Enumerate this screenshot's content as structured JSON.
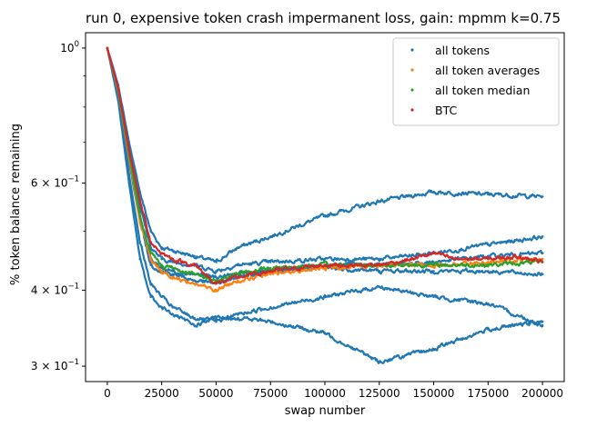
{
  "chart_data": {
    "type": "scatter",
    "title": "run 0, expensive token crash impermanent loss, gain: mpmm k=0.75",
    "xlabel": "swap number",
    "ylabel": "% token balance remaining",
    "xlim": [
      -10000,
      210000
    ],
    "ylim": [
      0.283,
      1.06
    ],
    "yscale": "log",
    "x_ticks": [
      0,
      25000,
      50000,
      75000,
      100000,
      125000,
      150000,
      175000,
      200000
    ],
    "x_tick_labels": [
      "0",
      "25000",
      "50000",
      "75000",
      "100000",
      "125000",
      "150000",
      "175000",
      "200000"
    ],
    "y_major_ticks": [
      {
        "value": 1.0,
        "base": "10",
        "exp": "0"
      },
      {
        "value": 0.3,
        "base": "3 × 10",
        "exp": "−1"
      },
      {
        "value": 0.4,
        "base": "4 × 10",
        "exp": "−1"
      },
      {
        "value": 0.6,
        "base": "6 × 10",
        "exp": "−1"
      }
    ],
    "y_minor_ticks": [
      0.5,
      0.7,
      0.8,
      0.9
    ],
    "legend": {
      "position": "top-right",
      "entries": [
        {
          "label": "all tokens",
          "color": "#1f77b4"
        },
        {
          "label": "all token averages",
          "color": "#ff7f0e"
        },
        {
          "label": "all token median",
          "color": "#2ca02c"
        },
        {
          "label": "BTC",
          "color": "#d62728"
        }
      ]
    },
    "series": [
      {
        "name": "all tokens",
        "color": "#1f77b4",
        "group": "token-1",
        "x": [
          0,
          5000,
          10000,
          15000,
          20000,
          25000,
          30000,
          40000,
          50000,
          60000,
          75000,
          100000,
          125000,
          150000,
          175000,
          200000
        ],
        "y": [
          1.0,
          0.87,
          0.7,
          0.58,
          0.5,
          0.47,
          0.465,
          0.455,
          0.445,
          0.47,
          0.49,
          0.53,
          0.56,
          0.58,
          0.575,
          0.57
        ]
      },
      {
        "name": "all tokens",
        "color": "#1f77b4",
        "group": "token-2",
        "x": [
          0,
          5000,
          10000,
          15000,
          20000,
          25000,
          30000,
          40000,
          50000,
          60000,
          75000,
          100000,
          125000,
          150000,
          175000,
          200000
        ],
        "y": [
          1.0,
          0.86,
          0.68,
          0.55,
          0.47,
          0.45,
          0.445,
          0.44,
          0.43,
          0.44,
          0.445,
          0.45,
          0.45,
          0.46,
          0.475,
          0.49
        ]
      },
      {
        "name": "all tokens",
        "color": "#1f77b4",
        "group": "token-3",
        "x": [
          0,
          5000,
          10000,
          15000,
          20000,
          25000,
          30000,
          40000,
          50000,
          60000,
          75000,
          100000,
          125000,
          150000,
          175000,
          200000
        ],
        "y": [
          1.0,
          0.85,
          0.66,
          0.53,
          0.45,
          0.435,
          0.43,
          0.425,
          0.42,
          0.425,
          0.43,
          0.44,
          0.44,
          0.445,
          0.455,
          0.46
        ]
      },
      {
        "name": "all tokens",
        "color": "#1f77b4",
        "group": "token-4",
        "x": [
          0,
          5000,
          10000,
          15000,
          20000,
          25000,
          30000,
          40000,
          50000,
          60000,
          75000,
          100000,
          125000,
          150000,
          175000,
          200000
        ],
        "y": [
          1.0,
          0.85,
          0.65,
          0.52,
          0.44,
          0.43,
          0.425,
          0.415,
          0.41,
          0.42,
          0.43,
          0.435,
          0.43,
          0.43,
          0.43,
          0.425
        ]
      },
      {
        "name": "all tokens",
        "color": "#1f77b4",
        "group": "token-5",
        "x": [
          0,
          5000,
          10000,
          15000,
          20000,
          25000,
          30000,
          40000,
          50000,
          60000,
          75000,
          100000,
          125000,
          150000,
          175000,
          200000
        ],
        "y": [
          1.0,
          0.83,
          0.62,
          0.48,
          0.41,
          0.39,
          0.375,
          0.36,
          0.355,
          0.365,
          0.375,
          0.39,
          0.405,
          0.39,
          0.38,
          0.35
        ]
      },
      {
        "name": "all tokens",
        "color": "#1f77b4",
        "group": "token-6",
        "x": [
          0,
          5000,
          10000,
          15000,
          20000,
          25000,
          30000,
          40000,
          50000,
          60000,
          75000,
          100000,
          125000,
          150000,
          175000,
          200000
        ],
        "y": [
          1.0,
          0.82,
          0.6,
          0.45,
          0.39,
          0.375,
          0.365,
          0.35,
          0.36,
          0.36,
          0.355,
          0.34,
          0.305,
          0.32,
          0.345,
          0.355
        ]
      },
      {
        "name": "all token averages",
        "color": "#ff7f0e",
        "x": [
          0,
          5000,
          10000,
          15000,
          20000,
          25000,
          30000,
          40000,
          50000,
          60000,
          75000,
          100000,
          125000,
          150000,
          175000,
          200000
        ],
        "y": [
          1.0,
          0.85,
          0.66,
          0.52,
          0.45,
          0.43,
          0.42,
          0.41,
          0.4,
          0.415,
          0.425,
          0.435,
          0.44,
          0.44,
          0.445,
          0.45
        ]
      },
      {
        "name": "all token median",
        "color": "#2ca02c",
        "x": [
          0,
          5000,
          10000,
          15000,
          20000,
          25000,
          30000,
          40000,
          50000,
          60000,
          75000,
          100000,
          125000,
          150000,
          175000,
          200000
        ],
        "y": [
          1.0,
          0.855,
          0.67,
          0.53,
          0.46,
          0.44,
          0.435,
          0.425,
          0.415,
          0.425,
          0.435,
          0.44,
          0.44,
          0.44,
          0.44,
          0.445
        ]
      },
      {
        "name": "BTC",
        "color": "#d62728",
        "x": [
          0,
          5000,
          10000,
          15000,
          20000,
          25000,
          30000,
          40000,
          50000,
          60000,
          75000,
          100000,
          125000,
          140000,
          150000,
          160000,
          175000,
          190000,
          200000
        ],
        "y": [
          1.0,
          0.86,
          0.68,
          0.56,
          0.48,
          0.46,
          0.45,
          0.44,
          0.41,
          0.42,
          0.43,
          0.44,
          0.44,
          0.45,
          0.46,
          0.45,
          0.45,
          0.455,
          0.445
        ]
      }
    ]
  }
}
